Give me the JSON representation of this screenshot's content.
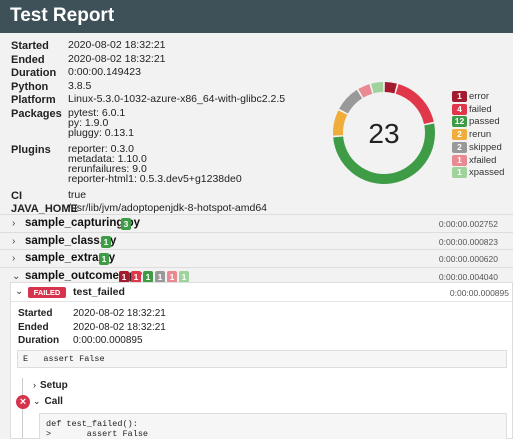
{
  "header": {
    "title": "Test Report"
  },
  "environment": [
    {
      "key": "Started",
      "values": [
        "2020-08-02 18:32:21"
      ]
    },
    {
      "key": "Ended",
      "values": [
        "2020-08-02 18:32:21"
      ]
    },
    {
      "key": "Duration",
      "values": [
        "0:00:00.149423"
      ]
    },
    {
      "key": "Python",
      "values": [
        "3.8.5"
      ]
    },
    {
      "key": "Platform",
      "values": [
        "Linux-5.3.0-1032-azure-x86_64-with-glibc2.2.5"
      ]
    },
    {
      "key": "Packages",
      "values": [
        "pytest: 6.0.1",
        "py: 1.9.0",
        "pluggy: 0.13.1"
      ]
    },
    {
      "key": "Plugins",
      "values": [
        "reporter: 0.3.0",
        "metadata: 1.10.0",
        "rerunfailures: 9.0",
        "reporter-html1: 0.5.3.dev5+g1238de0"
      ]
    },
    {
      "key": "CI",
      "values": [
        "true"
      ]
    },
    {
      "key": "JAVA_HOME",
      "values": [
        "/usr/lib/jvm/adoptopenjdk-8-hotspot-amd64"
      ]
    }
  ],
  "summary": {
    "total": "23",
    "legend": [
      {
        "count": "1",
        "label": "error",
        "color": "#a31b2e",
        "value": 1
      },
      {
        "count": "4",
        "label": "failed",
        "color": "#e0384a",
        "value": 4
      },
      {
        "count": "12",
        "label": "passed",
        "color": "#3f9c46",
        "value": 12
      },
      {
        "count": "2",
        "label": "rerun",
        "color": "#f0ad3c",
        "value": 2
      },
      {
        "count": "2",
        "label": "skipped",
        "color": "#999999",
        "value": 2
      },
      {
        "count": "1",
        "label": "xfailed",
        "color": "#e98a92",
        "value": 1
      },
      {
        "count": "1",
        "label": "xpassed",
        "color": "#9fd39b",
        "value": 1
      }
    ]
  },
  "modules": [
    {
      "name": "sample_capturing.py",
      "duration": "0:00:00.002752",
      "badges": [
        {
          "text": "3",
          "color": "#3f9c46"
        }
      ]
    },
    {
      "name": "sample_class.py",
      "duration": "0:00:00.000823",
      "badges": [
        {
          "text": "1",
          "color": "#3f9c46"
        }
      ]
    },
    {
      "name": "sample_extra.py",
      "duration": "0:00:00.000620",
      "badges": [
        {
          "text": "1",
          "color": "#3f9c46"
        }
      ]
    },
    {
      "name": "sample_outcomes.py",
      "duration": "0:00:00.004040",
      "badges": [
        {
          "text": "1",
          "color": "#a31b2e"
        },
        {
          "text": "1",
          "color": "#e0384a"
        },
        {
          "text": "1",
          "color": "#3f9c46"
        },
        {
          "text": "1",
          "color": "#999999"
        },
        {
          "text": "1",
          "color": "#e98a92"
        },
        {
          "text": "1",
          "color": "#9fd39b"
        }
      ]
    }
  ],
  "test": {
    "status": "FAILED",
    "name": "test_failed",
    "duration": "0:00:00.000895",
    "info": [
      {
        "key": "Started",
        "value": "2020-08-02 18:32:21"
      },
      {
        "key": "Ended",
        "value": "2020-08-02 18:32:21"
      },
      {
        "key": "Duration",
        "value": "0:00:00.000895"
      }
    ],
    "error_text": "E   assert False",
    "phases": {
      "setup": "Setup",
      "call": "Call"
    },
    "call_code": "def test_failed():\n>       assert False"
  }
}
